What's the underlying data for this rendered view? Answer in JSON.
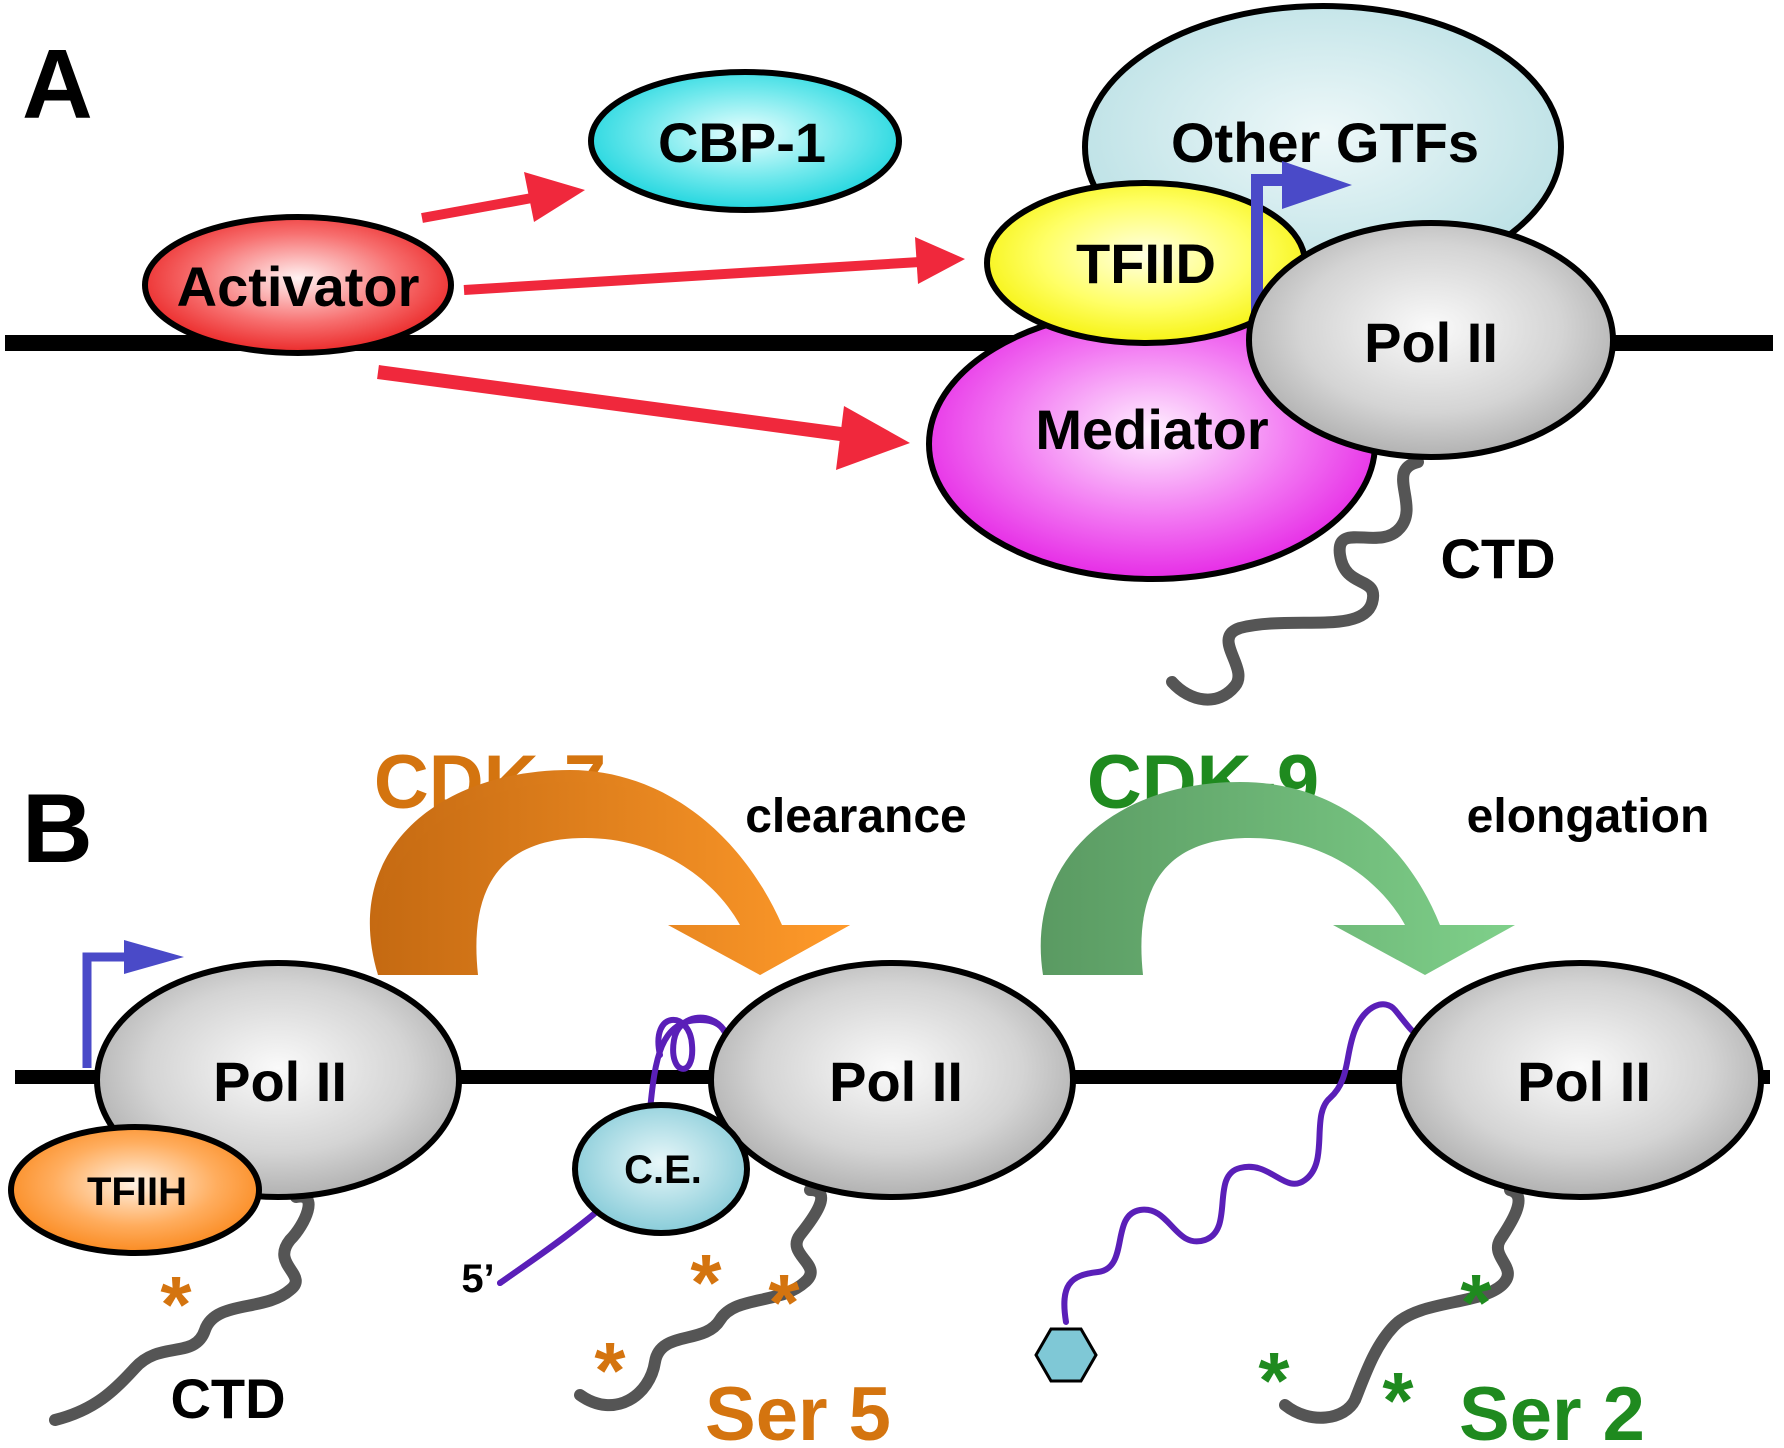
{
  "panel_a": {
    "label": "A",
    "activator": "Activator",
    "cbp": "CBP-1",
    "gtfs": "Other GTFs",
    "tfiid": "TFIID",
    "mediator": "Mediator",
    "pol": "Pol II",
    "ctd": "CTD"
  },
  "panel_b": {
    "label": "B",
    "cdk7": "CDK-7",
    "clearance": "clearance",
    "cdk9": "CDK-9",
    "elongation": "elongation",
    "pol1": "Pol II",
    "pol2": "Pol II",
    "pol3": "Pol II",
    "tfiih": "TFIIH",
    "ce": "C.E.",
    "five_prime": "5’",
    "ctd": "CTD",
    "ser5": "Ser 5",
    "ser2": "Ser 2",
    "star": "*"
  },
  "colors": {
    "arrow_red": "#f0283c",
    "cdk7_orange": "#d4740f",
    "cdk9_green": "#1f8a1f",
    "tss_blue": "#4a4ac8",
    "rna_purple": "#5a1fb8",
    "ctd_gray": "#555555"
  }
}
